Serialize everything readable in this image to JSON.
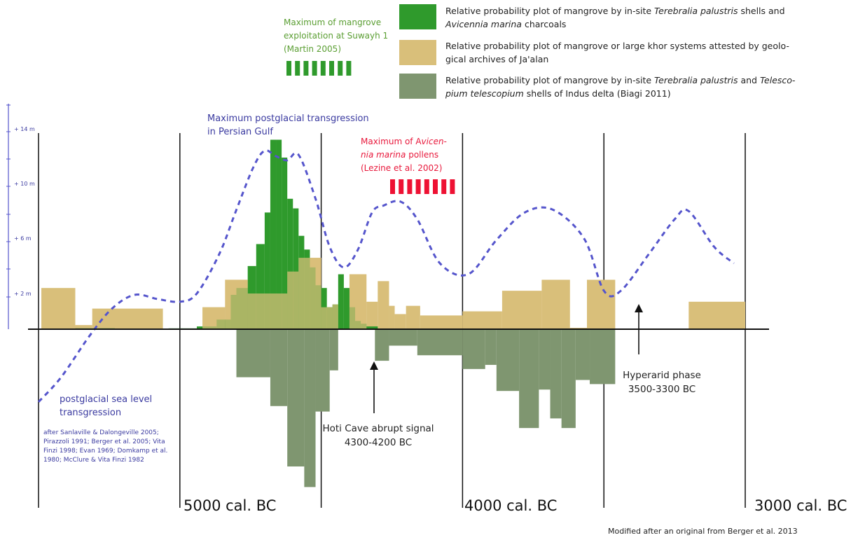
{
  "legend": {
    "mangrove_charcoal": "Relative probability plot of mangrove by in-site Terebralia palustris shells and Avicennia marina charcoals",
    "mangrove_charcoal_l1a": "Relative probability plot of mangrove by in-site ",
    "mangrove_charcoal_l1b": "Terebralia palustris",
    "mangrove_charcoal_l1c": " shells and",
    "mangrove_charcoal_l2a": "Avicennia marina",
    "mangrove_charcoal_l2b": " charcoals",
    "khor_l1": "Relative probability plot of mangrove or large khor systems attested by geolo-",
    "khor_l2": "gical archives of Ja'alan",
    "indus_l1a": "Relative probability plot of mangrove by in-site ",
    "indus_l1b": "Terebralia palustris",
    "indus_l1c": " and ",
    "indus_l1d": "Telesco-",
    "indus_l2a": "pium telescopium",
    "indus_l2b": " shells of Indus delta (Biagi 2011)",
    "colors": {
      "green": "#2f9a2c",
      "tan": "#d9bf7a",
      "grey": "#7f9670",
      "blue": "#5555cc",
      "red": "#ee1133"
    }
  },
  "notes": {
    "suwayh_l1": "Maximum of mangrove",
    "suwayh_l2": "exploitation at Suwayh 1",
    "suwayh_l3": "(Martin 2005)",
    "pollen_l1a": "Maximum of A",
    "pollen_l1b": "vicen-",
    "pollen_l2a": "nia marina",
    "pollen_l2b": " pollens",
    "pollen_l3": "(Lezine et al. 2002)",
    "persian_l1": "Maximum postglacial transgression",
    "persian_l2": "in Persian Gulf",
    "sealevel_l1": "postglacial sea level",
    "sealevel_l2": "transgression",
    "refs_l1": "after Sanlaville & Dalongeville 2005;",
    "refs_l2": "Pirazzoli 1991; Berger et al. 2005; Vita",
    "refs_l3": "Finzi 1998; Evan 1969; Domkamp et al.",
    "refs_l4": "1980; McClure & Vita Finzi 1982",
    "hoti_l1": "Hoti Cave abrupt signal",
    "hoti_l2": "4300-4200 BC",
    "hyper_l1": "Hyperarid phase",
    "hyper_l2": "3500-3300 BC",
    "credit": "Modified after an original from Berger et al. 2013"
  },
  "chart_data": {
    "type": "area",
    "x_axis_labels": [
      "5000 cal. BC",
      "4000 cal. BC",
      "3000 cal. BC"
    ],
    "y_tick_labels": [
      "+ 14 m",
      "+ 10 m",
      "+ 6 m",
      "+ 2 m"
    ],
    "x_range_calBC": [
      5500,
      3000
    ],
    "series": [
      {
        "name": "Relative probability plot of mangrove by in-site Terebralia palustris shells and Avicennia marina charcoals",
        "color": "#2f9a2c",
        "steps_calBC": [
          [
            5370,
            5230,
            0.06
          ],
          [
            5040,
            4940,
            0.06
          ],
          [
            4940,
            4870,
            0.2
          ],
          [
            4870,
            4820,
            0.7
          ],
          [
            4820,
            4800,
            2.5
          ],
          [
            4800,
            4760,
            3.0
          ],
          [
            4760,
            4730,
            4.6
          ],
          [
            4730,
            4700,
            6.2
          ],
          [
            4700,
            4680,
            8.5
          ],
          [
            4680,
            4660,
            13.8
          ],
          [
            4660,
            4640,
            13.8
          ],
          [
            4640,
            4620,
            12.5
          ],
          [
            4620,
            4600,
            9.5
          ],
          [
            4600,
            4580,
            8.8
          ],
          [
            4580,
            4560,
            6.8
          ],
          [
            4560,
            4540,
            5.8
          ],
          [
            4540,
            4520,
            4.5
          ],
          [
            4520,
            4500,
            3.2
          ],
          [
            4500,
            4480,
            3.0
          ],
          [
            4480,
            4460,
            1.6
          ],
          [
            4460,
            4440,
            1.8
          ],
          [
            4440,
            4420,
            4.0
          ],
          [
            4420,
            4400,
            3.0
          ],
          [
            4400,
            4380,
            1.6
          ],
          [
            4380,
            4360,
            0.6
          ],
          [
            4360,
            4340,
            0.4
          ],
          [
            4340,
            4300,
            0.2
          ]
        ]
      },
      {
        "name": "Relative probability plot of mangrove or large khor systems attested by geological archives of Ja'alan",
        "color": "#d9bf7a",
        "steps_calBC": [
          [
            5490,
            5370,
            3.0
          ],
          [
            5370,
            5310,
            0.3
          ],
          [
            5310,
            5060,
            1.5
          ],
          [
            4920,
            4840,
            1.6
          ],
          [
            4840,
            4760,
            3.6
          ],
          [
            4760,
            4620,
            2.6
          ],
          [
            4620,
            4580,
            4.2
          ],
          [
            4580,
            4500,
            5.2
          ],
          [
            4500,
            4460,
            1.6
          ],
          [
            4460,
            4440,
            1.8
          ],
          [
            4400,
            4340,
            4.0
          ],
          [
            4340,
            4300,
            2.0
          ],
          [
            4300,
            4260,
            3.5
          ],
          [
            4260,
            4240,
            1.7
          ],
          [
            4240,
            4200,
            1.1
          ],
          [
            4200,
            4150,
            1.7
          ],
          [
            4150,
            4000,
            1.0
          ],
          [
            4000,
            3860,
            1.3
          ],
          [
            3860,
            3720,
            2.8
          ],
          [
            3720,
            3620,
            3.6
          ],
          [
            3620,
            3560,
            0.1
          ],
          [
            3560,
            3460,
            3.6
          ],
          [
            3200,
            3000,
            2.0
          ]
        ]
      },
      {
        "name": "Relative probability plot of mangrove by in-site Terebralia palustris and Telescopium telescopium shells of Indus delta (Biagi 2011)",
        "color": "#7f9670",
        "steps_calBC": [
          [
            4800,
            4680,
            -3.5
          ],
          [
            4680,
            4620,
            -5.6
          ],
          [
            4620,
            4560,
            -10.0
          ],
          [
            4560,
            4520,
            -11.5
          ],
          [
            4520,
            4470,
            -6.0
          ],
          [
            4470,
            4440,
            -3.0
          ],
          [
            4310,
            4260,
            -2.3
          ],
          [
            4260,
            4160,
            -1.2
          ],
          [
            4160,
            4000,
            -1.9
          ],
          [
            4000,
            3920,
            -2.9
          ],
          [
            3920,
            3880,
            -2.6
          ],
          [
            3880,
            3800,
            -4.5
          ],
          [
            3800,
            3730,
            -7.2
          ],
          [
            3730,
            3690,
            -4.4
          ],
          [
            3690,
            3650,
            -6.5
          ],
          [
            3650,
            3600,
            -7.2
          ],
          [
            3600,
            3550,
            -3.7
          ],
          [
            3550,
            3460,
            -4.0
          ]
        ]
      },
      {
        "name": "postglacial sea level transgression",
        "color": "#5555cc",
        "curve_calBC": [
          [
            5500,
            -5.3
          ],
          [
            5420,
            -3.5
          ],
          [
            5320,
            -0.5
          ],
          [
            5240,
            1.5
          ],
          [
            5160,
            2.5
          ],
          [
            5080,
            2.2
          ],
          [
            5000,
            2.0
          ],
          [
            4940,
            2.6
          ],
          [
            4860,
            5.5
          ],
          [
            4800,
            8.7
          ],
          [
            4740,
            11.8
          ],
          [
            4700,
            13.0
          ],
          [
            4660,
            12.6
          ],
          [
            4620,
            12.3
          ],
          [
            4580,
            12.7
          ],
          [
            4520,
            9.5
          ],
          [
            4470,
            6.0
          ],
          [
            4420,
            4.5
          ],
          [
            4370,
            5.8
          ],
          [
            4320,
            8.5
          ],
          [
            4280,
            9.0
          ],
          [
            4220,
            9.3
          ],
          [
            4160,
            8.0
          ],
          [
            4080,
            4.8
          ],
          [
            3980,
            4.0
          ],
          [
            3880,
            6.5
          ],
          [
            3780,
            8.5
          ],
          [
            3680,
            8.7
          ],
          [
            3570,
            6.6
          ],
          [
            3500,
            2.8
          ],
          [
            3440,
            2.8
          ],
          [
            3340,
            5.5
          ],
          [
            3250,
            8.0
          ],
          [
            3200,
            8.6
          ],
          [
            3110,
            6.0
          ],
          [
            3040,
            4.8
          ]
        ]
      }
    ]
  }
}
